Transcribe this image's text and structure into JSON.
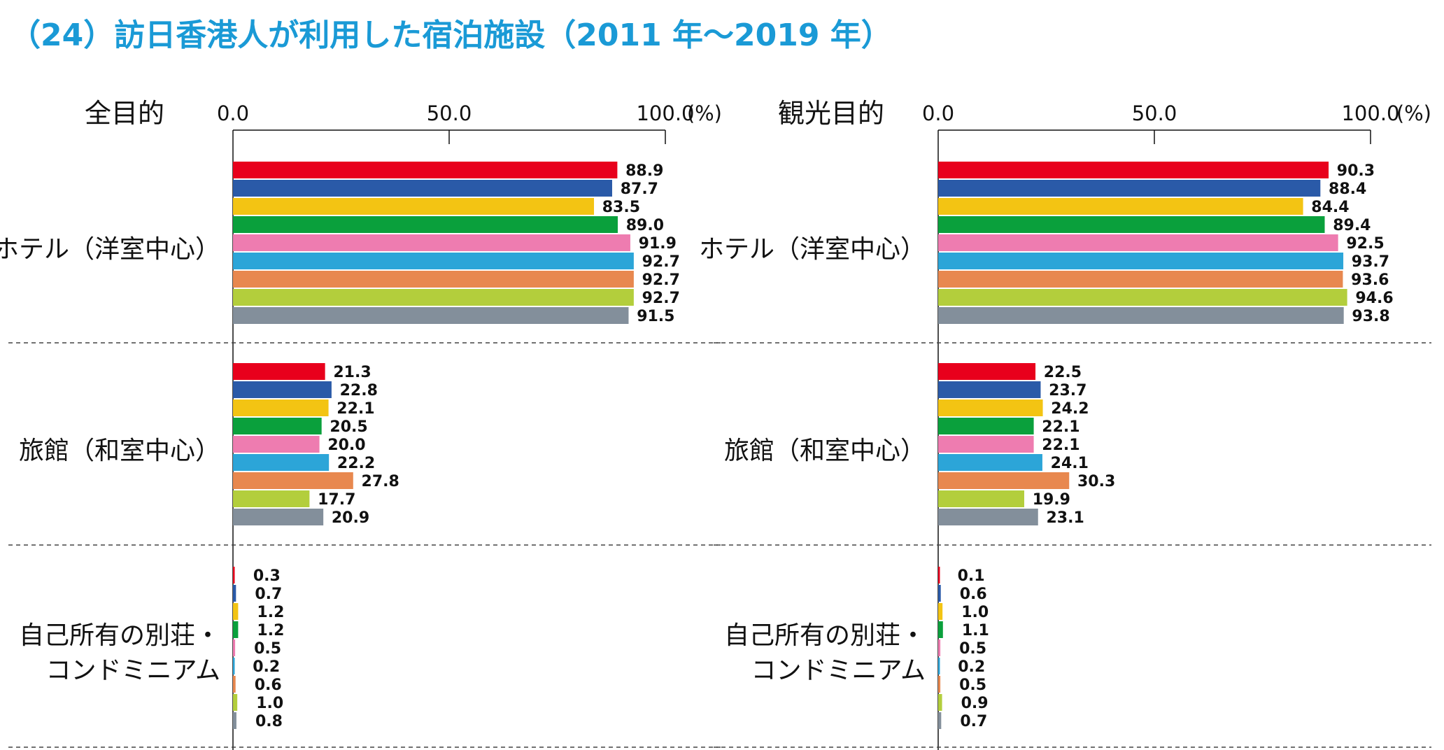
{
  "title": "（24）訪日香港人が利用した宿泊施設（2011 年～2019 年）",
  "colors": {
    "title": "#1a9ad6",
    "series": [
      "#e8001c",
      "#2a5aa8",
      "#f3c413",
      "#0aa03c",
      "#ee7cb0",
      "#2ca5d8",
      "#e8884f",
      "#b3ce3c",
      "#838f9b"
    ]
  },
  "chart_data": [
    {
      "type": "bar",
      "orientation": "horizontal",
      "title": "全目的",
      "unit": "(%)",
      "xlim": [
        0,
        100
      ],
      "ticks": [
        "0.0",
        "50.0",
        "100.0"
      ],
      "categories": [
        "ホテル（洋室中心）",
        "旅館（和室中心）",
        "自己所有の別荘・\nコンドミニアム"
      ],
      "series": [
        {
          "values": [
            88.9,
            21.3,
            0.3
          ]
        },
        {
          "values": [
            87.7,
            22.8,
            0.7
          ]
        },
        {
          "values": [
            83.5,
            22.1,
            1.2
          ]
        },
        {
          "values": [
            89.0,
            20.5,
            1.2
          ]
        },
        {
          "values": [
            91.9,
            20.0,
            0.5
          ]
        },
        {
          "values": [
            92.7,
            22.2,
            0.2
          ]
        },
        {
          "values": [
            92.7,
            27.8,
            0.6
          ]
        },
        {
          "values": [
            92.7,
            17.7,
            1.0
          ]
        },
        {
          "values": [
            91.5,
            20.9,
            0.8
          ]
        }
      ]
    },
    {
      "type": "bar",
      "orientation": "horizontal",
      "title": "観光目的",
      "unit": "(%)",
      "xlim": [
        0,
        100
      ],
      "ticks": [
        "0.0",
        "50.0",
        "100.0"
      ],
      "categories": [
        "ホテル（洋室中心）",
        "旅館（和室中心）",
        "自己所有の別荘・\nコンドミニアム"
      ],
      "series": [
        {
          "values": [
            90.3,
            22.5,
            0.1
          ]
        },
        {
          "values": [
            88.4,
            23.7,
            0.6
          ]
        },
        {
          "values": [
            84.4,
            24.2,
            1.0
          ]
        },
        {
          "values": [
            89.4,
            22.1,
            1.1
          ]
        },
        {
          "values": [
            92.5,
            22.1,
            0.5
          ]
        },
        {
          "values": [
            93.7,
            24.1,
            0.2
          ]
        },
        {
          "values": [
            93.6,
            30.3,
            0.5
          ]
        },
        {
          "values": [
            94.6,
            19.9,
            0.9
          ]
        },
        {
          "values": [
            93.8,
            23.1,
            0.7
          ]
        }
      ]
    }
  ]
}
